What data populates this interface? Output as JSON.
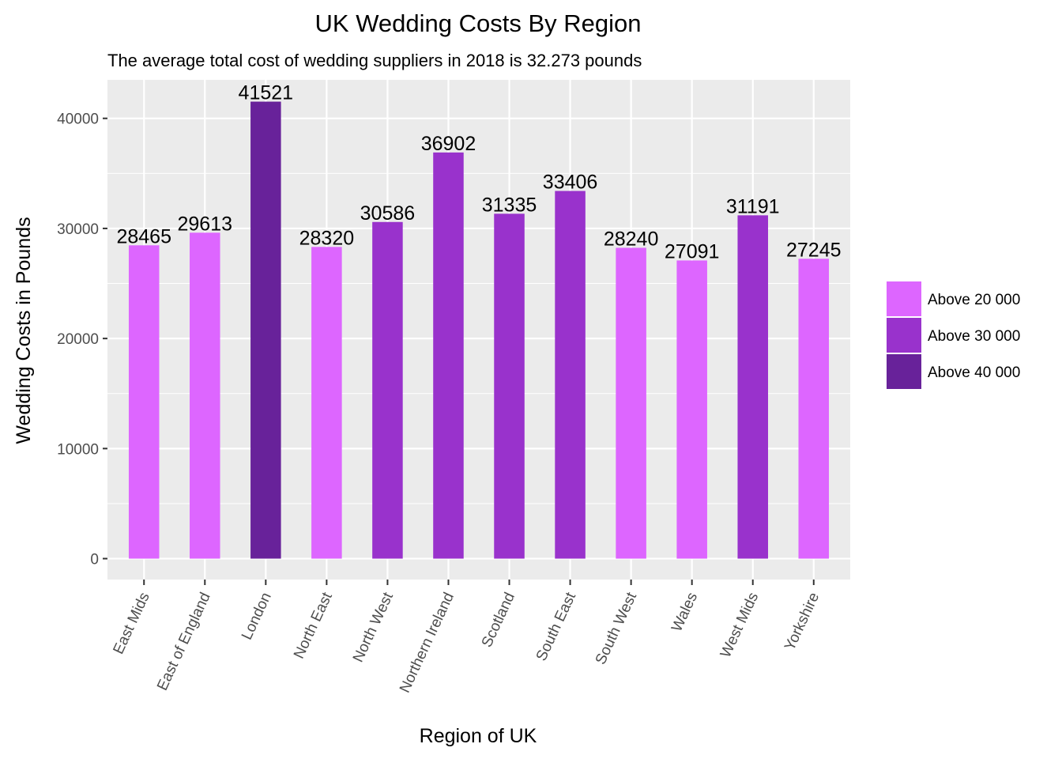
{
  "chart_data": {
    "type": "bar",
    "title": "UK Wedding Costs By Region",
    "subtitle": "The average total cost of wedding suppliers in 2018 is 32.273 pounds",
    "xlabel": "Region of UK",
    "ylabel": "Wedding Costs in Pounds",
    "ylim": [
      -1900,
      43500
    ],
    "yticks": [
      0,
      10000,
      20000,
      30000,
      40000
    ],
    "categories": [
      "East Mids",
      "East of England",
      "London",
      "North East",
      "North West",
      "Northern Ireland",
      "Scotland",
      "South East",
      "South West",
      "Wales",
      "West Mids",
      "Yorkshire"
    ],
    "values": [
      28465,
      29613,
      41521,
      28320,
      30586,
      36902,
      31335,
      33406,
      28240,
      27091,
      31191,
      27245
    ],
    "groups": [
      "Above 20 000",
      "Above 20 000",
      "Above 40 000",
      "Above 20 000",
      "Above 30 000",
      "Above 30 000",
      "Above 30 000",
      "Above 30 000",
      "Above 20 000",
      "Above 20 000",
      "Above 30 000",
      "Above 20 000"
    ],
    "legend": {
      "position": "right",
      "entries": [
        {
          "label": "Above 20 000",
          "color": "#dd66ff"
        },
        {
          "label": "Above 30 000",
          "color": "#9932cc"
        },
        {
          "label": "Above 40 000",
          "color": "#68229a"
        }
      ]
    },
    "grid": true,
    "panel_background": "#ebebeb",
    "grid_color": "#ffffff"
  }
}
